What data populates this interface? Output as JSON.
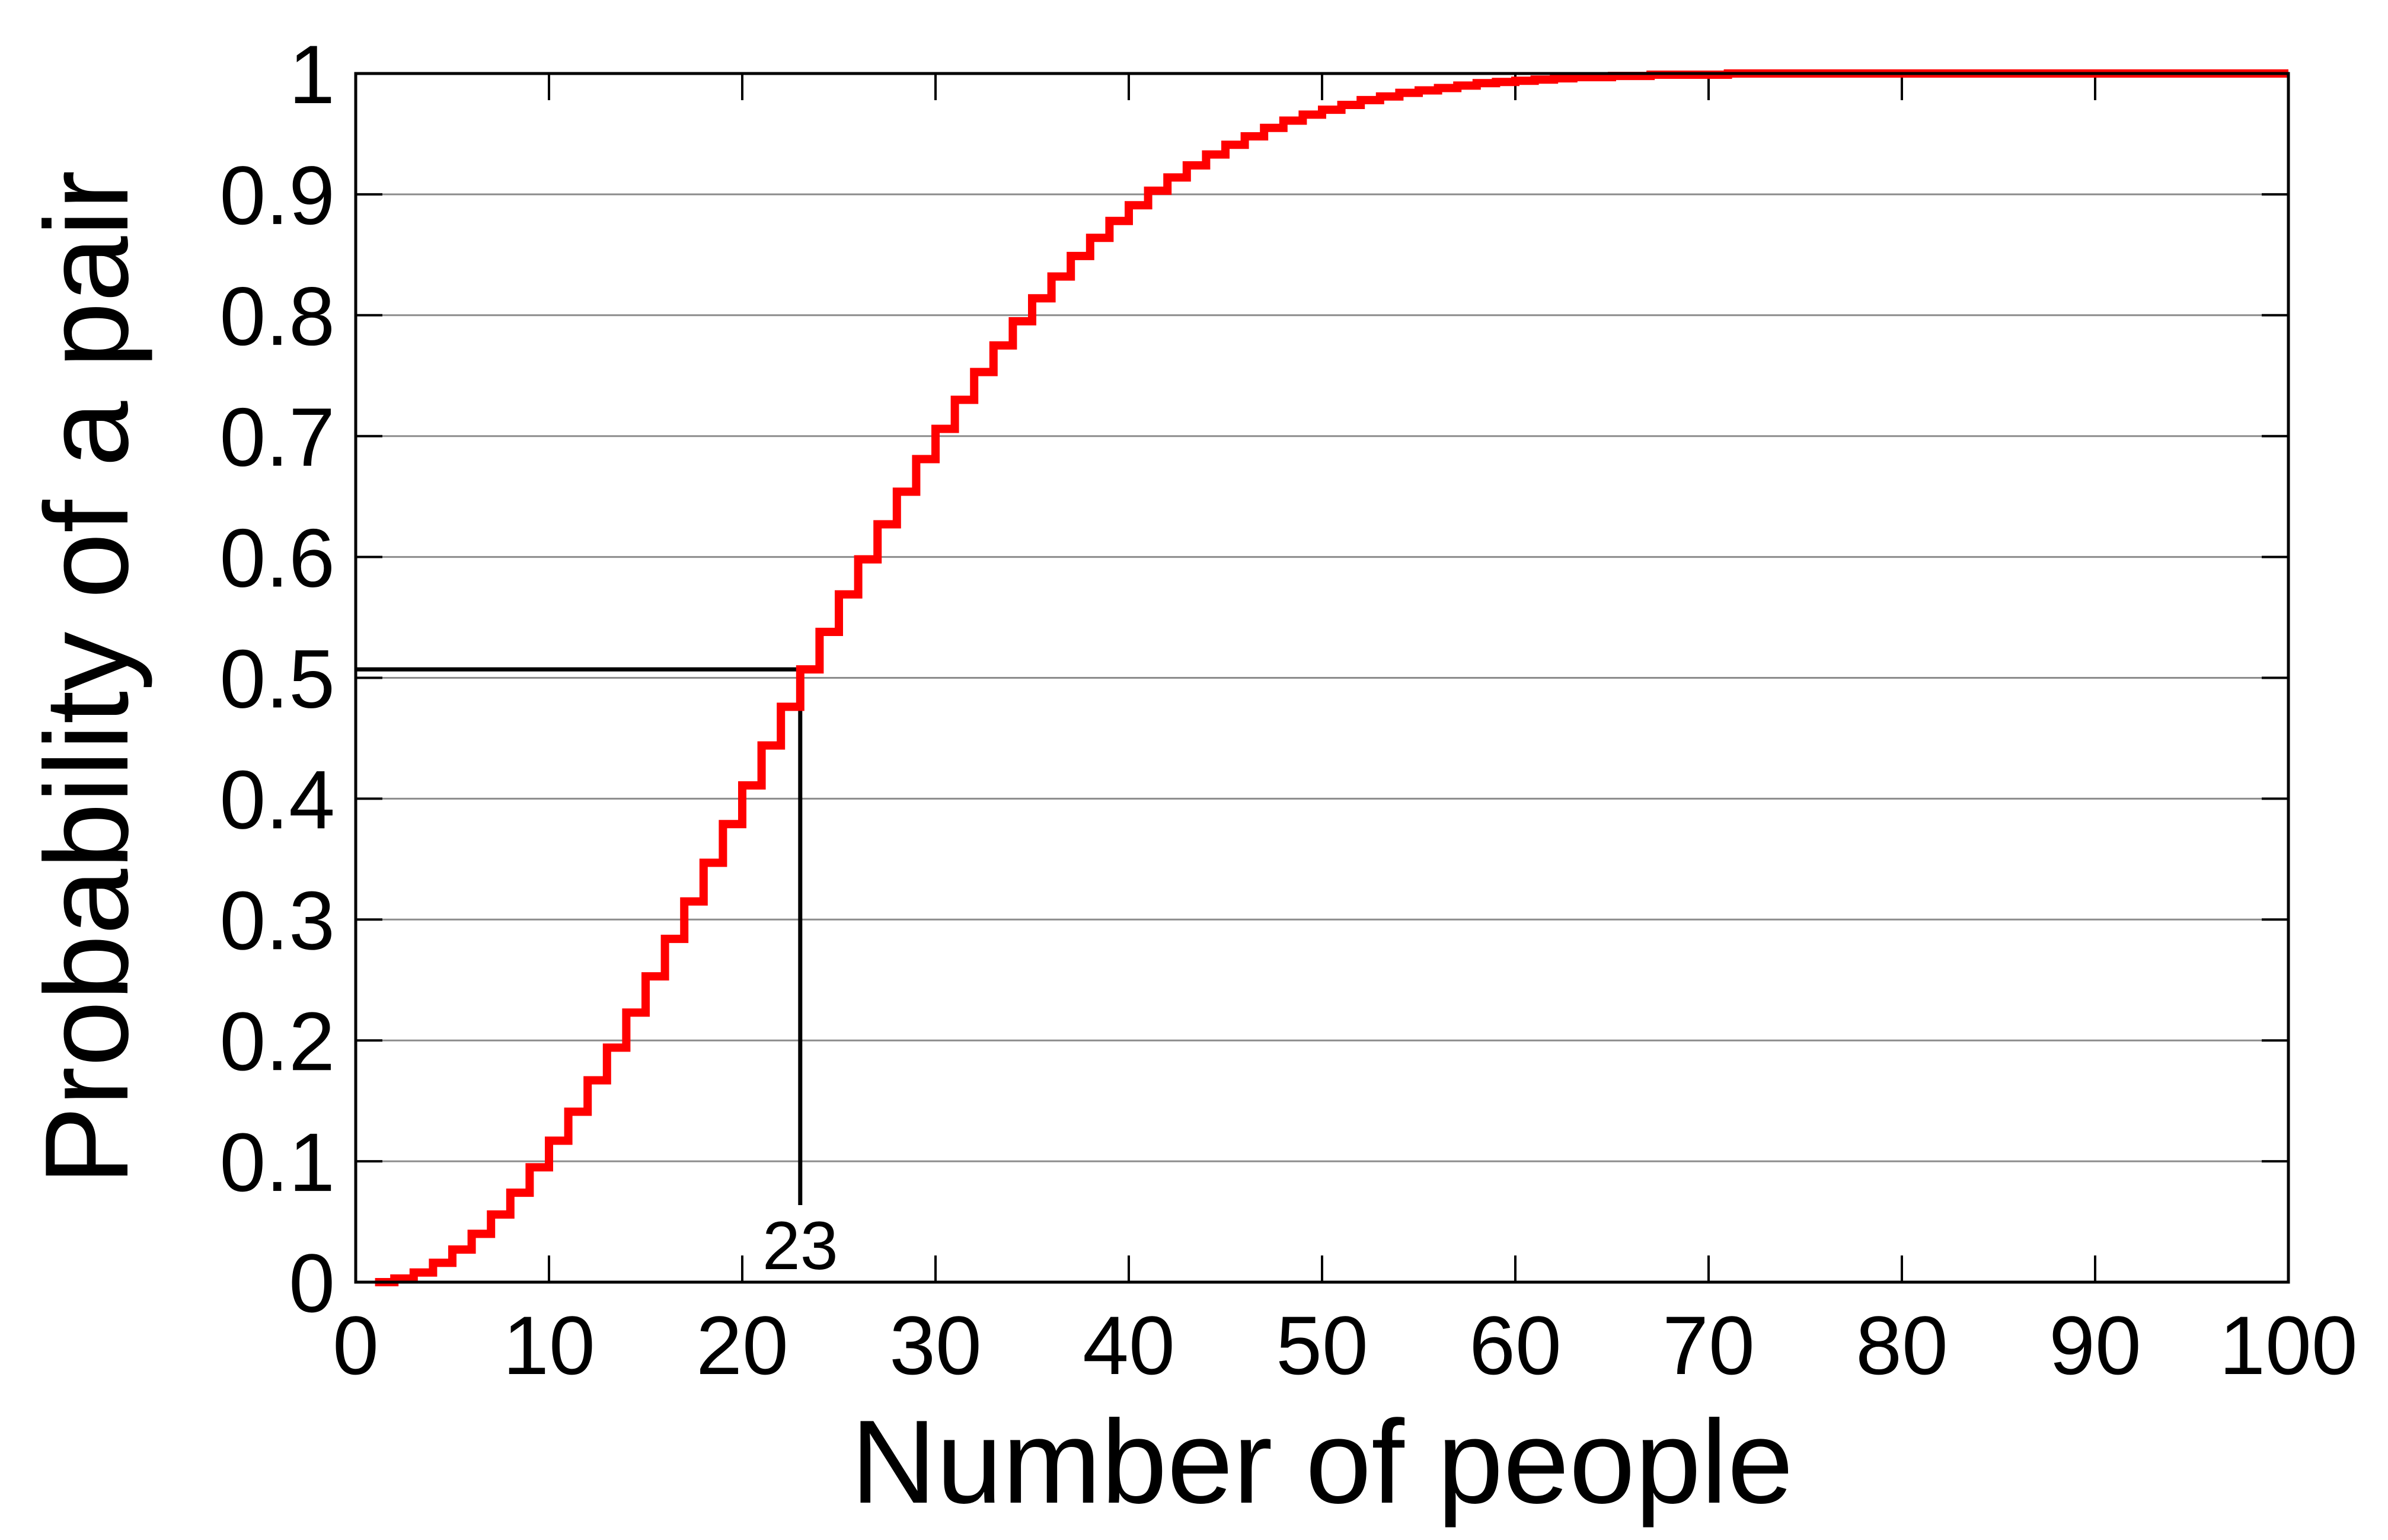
{
  "chart_data": {
    "type": "line",
    "step": true,
    "title": "",
    "xlabel": "Number of people",
    "ylabel": "Probability of a pair",
    "xlim": [
      0,
      100
    ],
    "ylim": [
      0,
      1
    ],
    "x_ticks": [
      "0",
      "10",
      "20",
      "30",
      "40",
      "50",
      "60",
      "70",
      "80",
      "90",
      "100"
    ],
    "y_ticks": [
      "0",
      "0.1",
      "0.2",
      "0.3",
      "0.4",
      "0.5",
      "0.6",
      "0.7",
      "0.8",
      "0.9",
      "1"
    ],
    "grid": "horizontal",
    "series": [
      {
        "color": "#ff0000",
        "x": [
          1,
          2,
          3,
          4,
          5,
          6,
          7,
          8,
          9,
          10,
          11,
          12,
          13,
          14,
          15,
          16,
          17,
          18,
          19,
          20,
          21,
          22,
          23,
          24,
          25,
          26,
          27,
          28,
          29,
          30,
          31,
          32,
          33,
          34,
          35,
          36,
          37,
          38,
          39,
          40,
          41,
          42,
          43,
          44,
          45,
          46,
          47,
          48,
          49,
          50,
          51,
          52,
          53,
          54,
          55,
          56,
          57,
          58,
          59,
          60,
          61,
          62,
          63,
          64,
          65,
          66,
          67,
          68,
          69,
          70,
          71,
          72,
          73,
          74,
          75,
          76,
          77,
          78,
          79,
          80,
          81,
          82,
          83,
          84,
          85,
          86,
          87,
          88,
          89,
          90,
          91,
          92,
          93,
          94,
          95,
          96,
          97,
          98,
          99,
          100
        ],
        "y": [
          0.0,
          0.003,
          0.008,
          0.016,
          0.027,
          0.04,
          0.056,
          0.074,
          0.095,
          0.117,
          0.141,
          0.167,
          0.194,
          0.223,
          0.253,
          0.284,
          0.315,
          0.347,
          0.379,
          0.411,
          0.444,
          0.476,
          0.507,
          0.538,
          0.569,
          0.598,
          0.627,
          0.654,
          0.681,
          0.706,
          0.73,
          0.753,
          0.775,
          0.795,
          0.814,
          0.832,
          0.849,
          0.864,
          0.878,
          0.891,
          0.903,
          0.914,
          0.924,
          0.933,
          0.941,
          0.948,
          0.955,
          0.961,
          0.966,
          0.97,
          0.974,
          0.978,
          0.981,
          0.984,
          0.986,
          0.988,
          0.99,
          0.992,
          0.993,
          0.994,
          0.995,
          0.996,
          0.997,
          0.997,
          0.998,
          0.998,
          0.999,
          0.999,
          0.999,
          0.999,
          1.0,
          1.0,
          1.0,
          1.0,
          1.0,
          1.0,
          1.0,
          1.0,
          1.0,
          1.0,
          1.0,
          1.0,
          1.0,
          1.0,
          1.0,
          1.0,
          1.0,
          1.0,
          1.0,
          1.0,
          1.0,
          1.0,
          1.0,
          1.0,
          1.0,
          1.0,
          1.0,
          1.0,
          1.0,
          1.0
        ]
      }
    ],
    "annotation": {
      "label": "23",
      "x": 23,
      "y": 0.507,
      "color": "#000000"
    }
  }
}
